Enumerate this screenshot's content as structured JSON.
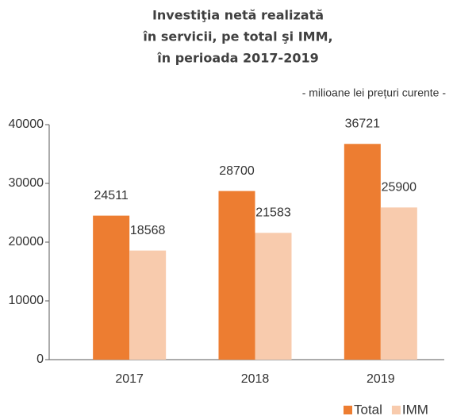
{
  "chart_data": {
    "type": "bar",
    "title": [
      "Investiţia netă realizată",
      "în servicii, pe total şi IMM,",
      "în perioada 2017-2019"
    ],
    "subtitle": "- milioane lei prețuri curente -",
    "categories": [
      "2017",
      "2018",
      "2019"
    ],
    "series": [
      {
        "name": "Total",
        "color": "#ed7d31",
        "values": [
          24511,
          28700,
          36721
        ]
      },
      {
        "name": "IMM",
        "color": "#f8cbad",
        "values": [
          18568,
          21583,
          25900
        ]
      }
    ],
    "ylim": [
      0,
      40000
    ],
    "yticks": [
      0,
      10000,
      20000,
      30000,
      40000
    ],
    "grid": false,
    "legend": "bottom-right"
  }
}
